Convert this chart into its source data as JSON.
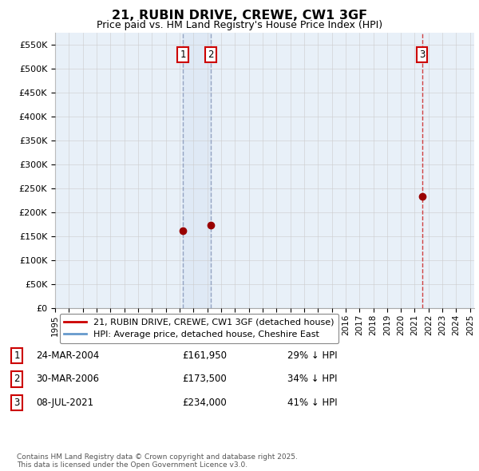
{
  "title": "21, RUBIN DRIVE, CREWE, CW1 3GF",
  "subtitle": "Price paid vs. HM Land Registry's House Price Index (HPI)",
  "y_ticks": [
    0,
    50000,
    100000,
    150000,
    200000,
    250000,
    300000,
    350000,
    400000,
    450000,
    500000,
    550000
  ],
  "y_tick_labels": [
    "£0",
    "£50K",
    "£100K",
    "£150K",
    "£200K",
    "£250K",
    "£300K",
    "£350K",
    "£400K",
    "£450K",
    "£500K",
    "£550K"
  ],
  "sales": [
    {
      "date_year": 2004.23,
      "price": 161950,
      "label": "1"
    },
    {
      "date_year": 2006.25,
      "price": 173500,
      "label": "2"
    },
    {
      "date_year": 2021.52,
      "price": 234000,
      "label": "3"
    }
  ],
  "sale_line_color": "#cc0000",
  "hpi_line_color": "#6699cc",
  "chart_bg_color": "#e8f0f8",
  "sale_marker_color": "#990000",
  "legend_sale_label": "21, RUBIN DRIVE, CREWE, CW1 3GF (detached house)",
  "legend_hpi_label": "HPI: Average price, detached house, Cheshire East",
  "table_rows": [
    {
      "num": "1",
      "date": "24-MAR-2004",
      "price": "£161,950",
      "hpi": "29% ↓ HPI"
    },
    {
      "num": "2",
      "date": "30-MAR-2006",
      "price": "£173,500",
      "hpi": "34% ↓ HPI"
    },
    {
      "num": "3",
      "date": "08-JUL-2021",
      "price": "£234,000",
      "hpi": "41% ↓ HPI"
    }
  ],
  "footnote": "Contains HM Land Registry data © Crown copyright and database right 2025.\nThis data is licensed under the Open Government Licence v3.0.",
  "background_color": "#ffffff",
  "grid_color": "#cccccc",
  "x_tick_years": [
    1995,
    1996,
    1997,
    1998,
    1999,
    2000,
    2001,
    2002,
    2003,
    2004,
    2005,
    2006,
    2007,
    2008,
    2009,
    2010,
    2011,
    2012,
    2013,
    2014,
    2015,
    2016,
    2017,
    2018,
    2019,
    2020,
    2021,
    2022,
    2023,
    2024,
    2025
  ]
}
